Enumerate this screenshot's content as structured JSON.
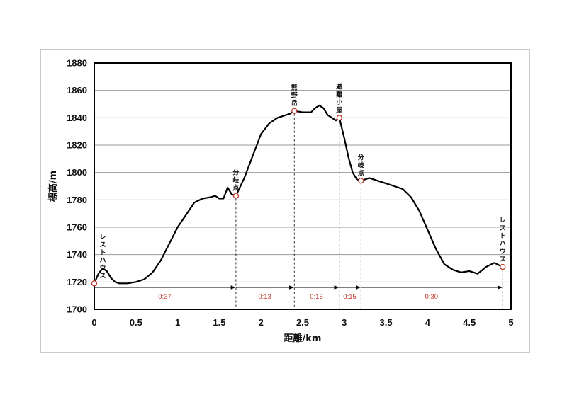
{
  "chart_data": {
    "type": "line",
    "title": "",
    "xlabel": "距離/km",
    "ylabel": "標高/m",
    "xlim": [
      0,
      5
    ],
    "ylim": [
      1700,
      1880
    ],
    "xticks": [
      "0",
      "0.5",
      "1",
      "1.5",
      "2",
      "2.5",
      "3",
      "3.5",
      "4",
      "4.5",
      "5"
    ],
    "yticks": [
      "1700",
      "1720",
      "1740",
      "1760",
      "1780",
      "1800",
      "1820",
      "1840",
      "1860",
      "1880"
    ],
    "grid": "horizontal",
    "series": [
      {
        "x": [
          0,
          0.05,
          0.1,
          0.15,
          0.2,
          0.25,
          0.3,
          0.4,
          0.5,
          0.6,
          0.7,
          0.8,
          0.9,
          1.0,
          1.1,
          1.2,
          1.3,
          1.4,
          1.45,
          1.5,
          1.55,
          1.6,
          1.65,
          1.7,
          1.8,
          1.9,
          2.0,
          2.1,
          2.2,
          2.3,
          2.35,
          2.4,
          2.5,
          2.6,
          2.65,
          2.7,
          2.75,
          2.8,
          2.85,
          2.9,
          2.94,
          3.0,
          3.05,
          3.1,
          3.15,
          3.2,
          3.3,
          3.4,
          3.5,
          3.6,
          3.7,
          3.8,
          3.9,
          4.0,
          4.1,
          4.2,
          4.3,
          4.4,
          4.5,
          4.6,
          4.7,
          4.8,
          4.9
        ],
        "y": [
          1719,
          1726,
          1730,
          1728,
          1723,
          1720,
          1719,
          1719,
          1720,
          1722,
          1727,
          1736,
          1748,
          1760,
          1769,
          1778,
          1781,
          1782,
          1783,
          1781,
          1781,
          1789,
          1784,
          1783,
          1796,
          1812,
          1828,
          1836,
          1840,
          1842,
          1843,
          1845,
          1844,
          1844,
          1847,
          1849,
          1847,
          1842,
          1840,
          1838,
          1840,
          1825,
          1811,
          1800,
          1795,
          1794,
          1796,
          1794,
          1792,
          1790,
          1788,
          1782,
          1772,
          1758,
          1744,
          1733,
          1729,
          1727,
          1728,
          1726,
          1731,
          1734,
          1731
        ]
      }
    ],
    "waypoints": [
      {
        "label": "レストハウス",
        "x": 0.0,
        "y": 1719
      },
      {
        "label": "分岐点",
        "x": 1.7,
        "y": 1783
      },
      {
        "label": "熊野岳",
        "x": 2.4,
        "y": 1845
      },
      {
        "label": "避難小屋",
        "x": 2.94,
        "y": 1840
      },
      {
        "label": "分岐点",
        "x": 3.2,
        "y": 1794
      },
      {
        "label": "レストハウス",
        "x": 4.9,
        "y": 1731
      }
    ],
    "segments": [
      {
        "label": "0:37",
        "from": 0.0,
        "to": 1.7
      },
      {
        "label": "0:13",
        "from": 1.7,
        "to": 2.4
      },
      {
        "label": "0:15",
        "from": 2.4,
        "to": 2.94
      },
      {
        "label": "0:15",
        "from": 2.94,
        "to": 3.2
      },
      {
        "label": "0:30",
        "from": 3.2,
        "to": 4.9
      }
    ],
    "colors": {
      "line": "#000000",
      "marker": "#c0392b",
      "segment_text": "#c0392b",
      "grid": "#9a9a9a"
    }
  }
}
